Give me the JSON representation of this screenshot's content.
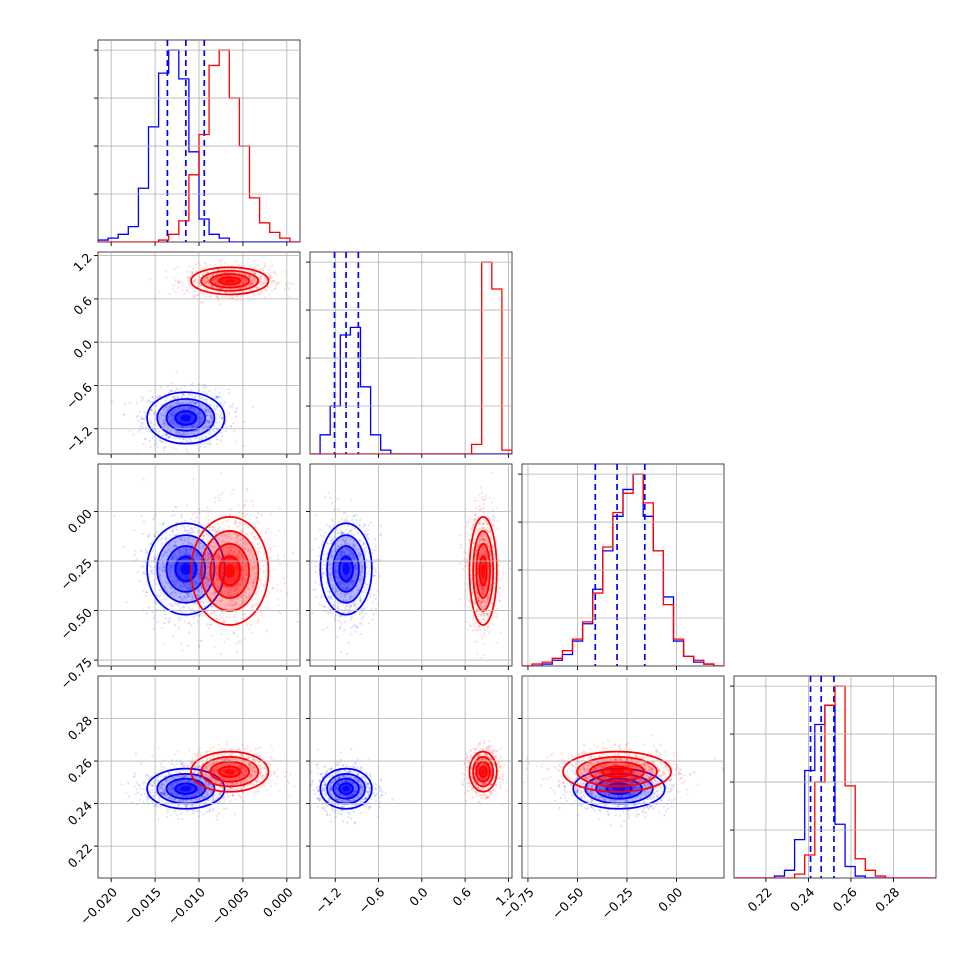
{
  "colors": {
    "sample_a": "#0000ff",
    "sample_b": "#ff0000"
  },
  "chart_data": {
    "type": "corner",
    "title": "",
    "legend": null,
    "grid": true,
    "parameters": [
      {
        "index": 0,
        "xlim": [
          -0.0215,
          0.0015
        ],
        "ticks": [
          -0.02,
          -0.015,
          -0.01,
          -0.005,
          0.0
        ],
        "tick_labels": [
          "−0.020",
          "−0.015",
          "−0.010",
          "−0.005",
          "0.000"
        ],
        "has_x_labels": true,
        "has_y_labels": false
      },
      {
        "index": 1,
        "xlim": [
          -1.55,
          1.25
        ],
        "ticks": [
          -1.2,
          -0.6,
          0.0,
          0.6,
          1.2
        ],
        "tick_labels": [
          "−1.2",
          "−0.6",
          "0.0",
          "0.6",
          "1.2"
        ],
        "has_x_labels": true,
        "has_y_labels": true
      },
      {
        "index": 2,
        "xlim": [
          -0.78,
          0.24
        ],
        "ticks": [
          -0.75,
          -0.5,
          -0.25,
          0.0
        ],
        "tick_labels": [
          "−0.75",
          "−0.50",
          "−0.25",
          "0.00"
        ],
        "has_x_labels": true,
        "has_y_labels": true
      },
      {
        "index": 3,
        "xlim": [
          0.205,
          0.3
        ],
        "ticks": [
          0.22,
          0.24,
          0.26,
          0.28
        ],
        "tick_labels": [
          "0.22",
          "0.24",
          "0.26",
          "0.28"
        ],
        "has_x_labels": true,
        "has_y_labels": true
      }
    ],
    "series": [
      {
        "color": "#0000ff",
        "means": [
          -0.0115,
          -1.05,
          -0.29,
          0.247
        ],
        "stds": [
          0.0021,
          0.17,
          0.11,
          0.0045
        ],
        "quantiles": [
          [
            -0.0136,
            -0.0115,
            -0.0094
          ],
          [
            -1.21,
            -1.05,
            -0.88
          ],
          [
            -0.41,
            -0.3,
            -0.16
          ],
          [
            0.241,
            0.246,
            0.252
          ]
        ],
        "marginals": [
          {
            "edges_min": -0.0215,
            "edges_max": 0.0015,
            "counts": [
              0.01,
              0.02,
              0.04,
              0.08,
              0.28,
              0.6,
              0.88,
              1.0,
              0.85,
              0.47,
              0.12,
              0.04,
              0.02,
              0,
              0,
              0,
              0,
              0,
              0,
              0
            ]
          },
          {
            "edges_min": -1.55,
            "edges_max": 1.25,
            "counts": [
              0,
              0.1,
              0.25,
              0.62,
              0.66,
              0.35,
              0.1,
              0.02,
              0,
              0,
              0,
              0,
              0,
              0,
              0,
              0,
              0,
              0,
              0,
              0
            ]
          },
          {
            "edges_min": -0.78,
            "edges_max": 0.24,
            "counts": [
              0,
              0,
              0.01,
              0.03,
              0.06,
              0.13,
              0.22,
              0.4,
              0.6,
              0.78,
              0.92,
              1.0,
              0.78,
              0.6,
              0.36,
              0.13,
              0.05,
              0.02,
              0.01,
              0
            ]
          },
          {
            "edges_min": 0.205,
            "edges_max": 0.3,
            "counts": [
              0,
              0,
              0,
              0,
              0.01,
              0.04,
              0.2,
              0.56,
              0.8,
              0.9,
              0.28,
              0.06,
              0.01,
              0,
              0,
              0,
              0,
              0,
              0,
              0
            ]
          }
        ]
      },
      {
        "color": "#ff0000",
        "means": [
          -0.0065,
          0.85,
          -0.3,
          0.255
        ],
        "stds": [
          0.0021,
          0.09,
          0.13,
          0.0045
        ],
        "quantiles": [],
        "marginals": [
          {
            "edges_min": -0.0215,
            "edges_max": 0.0015,
            "counts": [
              0,
              0,
              0,
              0,
              0,
              0,
              0.01,
              0.04,
              0.11,
              0.35,
              0.56,
              0.92,
              1.0,
              0.75,
              0.5,
              0.23,
              0.1,
              0.05,
              0.02,
              0
            ]
          },
          {
            "edges_min": -1.55,
            "edges_max": 1.25,
            "counts": [
              0,
              0,
              0,
              0,
              0,
              0,
              0,
              0,
              0,
              0,
              0,
              0,
              0,
              0,
              0,
              0,
              0.05,
              1.0,
              0.86,
              0.02
            ]
          },
          {
            "edges_min": -0.78,
            "edges_max": 0.24,
            "counts": [
              0,
              0.01,
              0.02,
              0.04,
              0.08,
              0.14,
              0.23,
              0.38,
              0.62,
              0.8,
              0.9,
              1.0,
              0.85,
              0.6,
              0.32,
              0.14,
              0.05,
              0.03,
              0.01,
              0
            ]
          },
          {
            "edges_min": 0.205,
            "edges_max": 0.3,
            "counts": [
              0,
              0,
              0,
              0,
              0,
              0,
              0.02,
              0.12,
              0.5,
              0.9,
              1.0,
              0.48,
              0.1,
              0.04,
              0.01,
              0,
              0,
              0,
              0,
              0
            ]
          }
        ]
      }
    ]
  }
}
